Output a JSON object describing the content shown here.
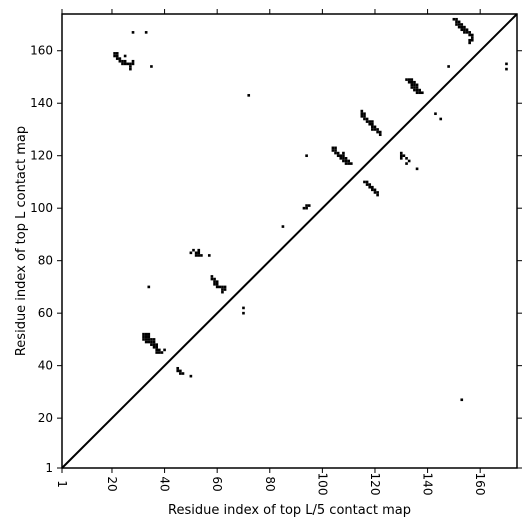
{
  "chart_data": {
    "type": "heatmap",
    "xlabel": "Residue index of top L/5 contact map",
    "ylabel": "Residue index of top L contact map",
    "xlim": [
      1,
      174
    ],
    "ylim": [
      1,
      174
    ],
    "x_ticks": [
      1,
      20,
      40,
      60,
      80,
      100,
      120,
      140,
      160
    ],
    "y_ticks": [
      1,
      20,
      40,
      60,
      80,
      100,
      120,
      140,
      160
    ],
    "grid": false,
    "diagonal_line": true,
    "colors": {
      "contact": "#000000",
      "background": "#ffffff",
      "axes": "#000000"
    },
    "series": [
      {
        "contacts": [
          [
            21,
            159
          ],
          [
            22,
            159
          ],
          [
            21,
            158
          ],
          [
            22,
            158
          ],
          [
            22,
            157
          ],
          [
            23,
            157
          ],
          [
            23,
            156
          ],
          [
            24,
            156
          ],
          [
            25,
            156
          ],
          [
            24,
            155
          ],
          [
            25,
            155
          ],
          [
            26,
            155
          ],
          [
            27,
            155
          ],
          [
            27,
            154
          ],
          [
            28,
            155
          ],
          [
            28,
            156
          ],
          [
            27,
            153
          ],
          [
            25,
            158
          ],
          [
            28,
            167
          ],
          [
            33,
            167
          ],
          [
            35,
            154
          ],
          [
            32,
            52
          ],
          [
            33,
            52
          ],
          [
            34,
            52
          ],
          [
            32,
            51
          ],
          [
            33,
            51
          ],
          [
            34,
            51
          ],
          [
            32,
            50
          ],
          [
            33,
            50
          ],
          [
            34,
            50
          ],
          [
            35,
            50
          ],
          [
            36,
            50
          ],
          [
            33,
            49
          ],
          [
            34,
            49
          ],
          [
            35,
            49
          ],
          [
            36,
            49
          ],
          [
            35,
            48
          ],
          [
            36,
            48
          ],
          [
            37,
            48
          ],
          [
            36,
            47
          ],
          [
            37,
            47
          ],
          [
            37,
            46
          ],
          [
            38,
            46
          ],
          [
            37,
            45
          ],
          [
            38,
            45
          ],
          [
            39,
            45
          ],
          [
            40,
            46
          ],
          [
            34,
            70
          ],
          [
            45,
            39
          ],
          [
            45,
            38
          ],
          [
            46,
            38
          ],
          [
            46,
            37
          ],
          [
            47,
            37
          ],
          [
            50,
            36
          ],
          [
            50,
            83
          ],
          [
            51,
            84
          ],
          [
            52,
            83
          ],
          [
            52,
            82
          ],
          [
            53,
            82
          ],
          [
            53,
            83
          ],
          [
            53,
            84
          ],
          [
            54,
            82
          ],
          [
            57,
            82
          ],
          [
            58,
            74
          ],
          [
            58,
            73
          ],
          [
            59,
            73
          ],
          [
            59,
            72
          ],
          [
            59,
            71
          ],
          [
            60,
            72
          ],
          [
            60,
            71
          ],
          [
            60,
            70
          ],
          [
            61,
            70
          ],
          [
            62,
            70
          ],
          [
            62,
            69
          ],
          [
            63,
            69
          ],
          [
            63,
            70
          ],
          [
            62,
            68
          ],
          [
            70,
            62
          ],
          [
            70,
            60
          ],
          [
            72,
            143
          ],
          [
            85,
            93
          ],
          [
            93,
            100
          ],
          [
            94,
            100
          ],
          [
            94,
            101
          ],
          [
            95,
            101
          ],
          [
            94,
            120
          ],
          [
            104,
            123
          ],
          [
            105,
            123
          ],
          [
            104,
            122
          ],
          [
            105,
            122
          ],
          [
            105,
            121
          ],
          [
            106,
            121
          ],
          [
            106,
            120
          ],
          [
            107,
            120
          ],
          [
            108,
            120
          ],
          [
            107,
            119
          ],
          [
            108,
            119
          ],
          [
            109,
            119
          ],
          [
            108,
            118
          ],
          [
            109,
            118
          ],
          [
            110,
            118
          ],
          [
            109,
            117
          ],
          [
            110,
            117
          ],
          [
            111,
            117
          ],
          [
            108,
            121
          ],
          [
            115,
            137
          ],
          [
            115,
            136
          ],
          [
            116,
            136
          ],
          [
            115,
            135
          ],
          [
            116,
            135
          ],
          [
            116,
            134
          ],
          [
            117,
            134
          ],
          [
            117,
            133
          ],
          [
            118,
            133
          ],
          [
            119,
            133
          ],
          [
            118,
            132
          ],
          [
            119,
            132
          ],
          [
            119,
            131
          ],
          [
            120,
            131
          ],
          [
            119,
            130
          ],
          [
            120,
            130
          ],
          [
            121,
            130
          ],
          [
            121,
            129
          ],
          [
            122,
            129
          ],
          [
            122,
            128
          ],
          [
            116,
            110
          ],
          [
            117,
            110
          ],
          [
            117,
            109
          ],
          [
            118,
            109
          ],
          [
            118,
            108
          ],
          [
            119,
            108
          ],
          [
            119,
            107
          ],
          [
            120,
            107
          ],
          [
            120,
            106
          ],
          [
            121,
            106
          ],
          [
            121,
            105
          ],
          [
            130,
            121
          ],
          [
            130,
            120
          ],
          [
            131,
            120
          ],
          [
            130,
            119
          ],
          [
            132,
            119
          ],
          [
            133,
            118
          ],
          [
            132,
            117
          ],
          [
            136,
            115
          ],
          [
            132,
            149
          ],
          [
            133,
            149
          ],
          [
            134,
            149
          ],
          [
            133,
            148
          ],
          [
            134,
            148
          ],
          [
            135,
            148
          ],
          [
            134,
            147
          ],
          [
            135,
            147
          ],
          [
            136,
            147
          ],
          [
            134,
            146
          ],
          [
            135,
            146
          ],
          [
            136,
            146
          ],
          [
            135,
            145
          ],
          [
            136,
            145
          ],
          [
            137,
            145
          ],
          [
            136,
            144
          ],
          [
            137,
            144
          ],
          [
            138,
            144
          ],
          [
            143,
            136
          ],
          [
            145,
            134
          ],
          [
            148,
            154
          ],
          [
            150,
            172
          ],
          [
            151,
            172
          ],
          [
            151,
            171
          ],
          [
            152,
            171
          ],
          [
            151,
            170
          ],
          [
            152,
            170
          ],
          [
            153,
            170
          ],
          [
            152,
            169
          ],
          [
            153,
            169
          ],
          [
            154,
            169
          ],
          [
            153,
            168
          ],
          [
            154,
            168
          ],
          [
            155,
            168
          ],
          [
            154,
            167
          ],
          [
            155,
            167
          ],
          [
            156,
            167
          ],
          [
            156,
            166
          ],
          [
            157,
            166
          ],
          [
            157,
            165
          ],
          [
            156,
            164
          ],
          [
            157,
            164
          ],
          [
            156,
            163
          ],
          [
            170,
            155
          ],
          [
            170,
            153
          ],
          [
            153,
            27
          ]
        ]
      }
    ]
  }
}
